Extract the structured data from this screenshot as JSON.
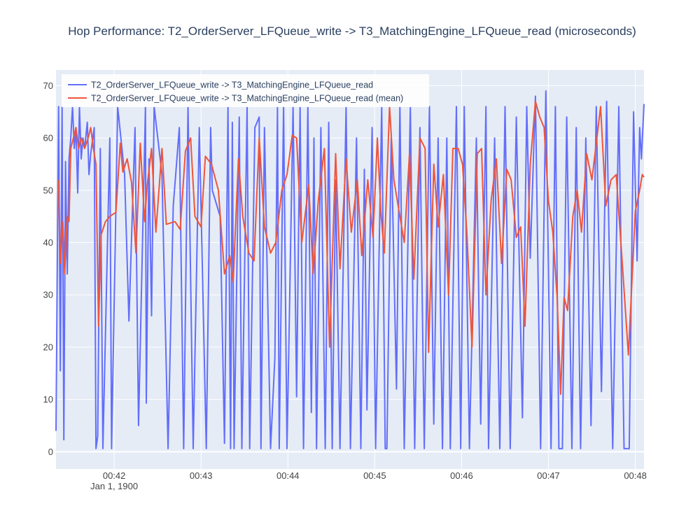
{
  "chart_data": {
    "type": "line",
    "title": "Hop Performance: T2_OrderServer_LFQueue_write -> T3_MatchingEngine_LFQueue_read (microseconds)",
    "xlabel": "",
    "ylabel": "",
    "x_ticks": [
      "00:42",
      "00:43",
      "00:44",
      "00:45",
      "00:46",
      "00:47",
      "00:48"
    ],
    "x_tick_minutes": [
      42,
      43,
      44,
      45,
      46,
      47,
      48
    ],
    "x_sublabel": "Jan 1, 1900",
    "xlim_minutes": [
      41.33,
      48.1
    ],
    "ylim": [
      -3.3,
      73
    ],
    "y_ticks": [
      0,
      10,
      20,
      30,
      40,
      50,
      60,
      70
    ],
    "grid": true,
    "legend_position": "top-left",
    "series": [
      {
        "name": "T2_OrderServer_LFQueue_write -> T3_MatchingEngine_LFQueue_read",
        "color": "#636efa",
        "points": [
          [
            41.33,
            4
          ],
          [
            41.36,
            66
          ],
          [
            41.38,
            15.5
          ],
          [
            41.4,
            66
          ],
          [
            41.42,
            2.3
          ],
          [
            41.44,
            55.5
          ],
          [
            41.46,
            34
          ],
          [
            41.48,
            56
          ],
          [
            41.5,
            60
          ],
          [
            41.52,
            66
          ],
          [
            41.54,
            58
          ],
          [
            41.56,
            62
          ],
          [
            41.58,
            49.5
          ],
          [
            41.6,
            66
          ],
          [
            41.62,
            56
          ],
          [
            41.64,
            60
          ],
          [
            41.66,
            58
          ],
          [
            41.69,
            63
          ],
          [
            41.71,
            53
          ],
          [
            41.73,
            57
          ],
          [
            41.77,
            62
          ],
          [
            41.79,
            0.6
          ],
          [
            41.81,
            3
          ],
          [
            41.84,
            58
          ],
          [
            41.87,
            0.6
          ],
          [
            41.95,
            60
          ],
          [
            41.97,
            0.6
          ],
          [
            42.04,
            66
          ],
          [
            42.12,
            53
          ],
          [
            42.17,
            25
          ],
          [
            42.24,
            62
          ],
          [
            42.28,
            5
          ],
          [
            42.36,
            66
          ],
          [
            42.37,
            9.3
          ],
          [
            42.4,
            56
          ],
          [
            42.43,
            26
          ],
          [
            42.46,
            66
          ],
          [
            42.55,
            53
          ],
          [
            42.62,
            0.6
          ],
          [
            42.68,
            47
          ],
          [
            42.75,
            62
          ],
          [
            42.8,
            0.6
          ],
          [
            42.85,
            66
          ],
          [
            42.91,
            0.6
          ],
          [
            42.98,
            62
          ],
          [
            43.06,
            0.6
          ],
          [
            43.11,
            62
          ],
          [
            43.13,
            50
          ],
          [
            43.22,
            45
          ],
          [
            43.27,
            1.6
          ],
          [
            43.31,
            66
          ],
          [
            43.34,
            0.6
          ],
          [
            43.36,
            63
          ],
          [
            43.38,
            0.6
          ],
          [
            43.44,
            64
          ],
          [
            43.47,
            0.6
          ],
          [
            43.53,
            66
          ],
          [
            43.56,
            0.6
          ],
          [
            43.62,
            62
          ],
          [
            43.67,
            64
          ],
          [
            43.69,
            0.6
          ],
          [
            43.73,
            62
          ],
          [
            43.8,
            0.6
          ],
          [
            43.85,
            18
          ],
          [
            43.88,
            66
          ],
          [
            43.9,
            0.6
          ],
          [
            43.95,
            66
          ],
          [
            43.99,
            0.6
          ],
          [
            44.06,
            66
          ],
          [
            44.1,
            10.5
          ],
          [
            44.14,
            66
          ],
          [
            44.18,
            0.6
          ],
          [
            44.23,
            66
          ],
          [
            44.27,
            7.5
          ],
          [
            44.3,
            60
          ],
          [
            44.33,
            0.6
          ],
          [
            44.38,
            62
          ],
          [
            44.43,
            0.6
          ],
          [
            44.47,
            63
          ],
          [
            44.51,
            0.6
          ],
          [
            44.55,
            52
          ],
          [
            44.6,
            0.6
          ],
          [
            44.67,
            66
          ],
          [
            44.72,
            0.6
          ],
          [
            44.79,
            60
          ],
          [
            44.84,
            0.6
          ],
          [
            44.88,
            54
          ],
          [
            44.91,
            8
          ],
          [
            44.97,
            62
          ],
          [
            45.01,
            0.6
          ],
          [
            45.08,
            66
          ],
          [
            45.12,
            0.6
          ],
          [
            45.14,
            0.6
          ],
          [
            45.19,
            60
          ],
          [
            45.25,
            12
          ],
          [
            45.29,
            66
          ],
          [
            45.34,
            0.6
          ],
          [
            45.41,
            66
          ],
          [
            45.46,
            0.6
          ],
          [
            45.52,
            62
          ],
          [
            45.57,
            0.6
          ],
          [
            45.63,
            66
          ],
          [
            45.68,
            5.3
          ],
          [
            45.73,
            60
          ],
          [
            45.78,
            0.6
          ],
          [
            45.83,
            60
          ],
          [
            45.87,
            0.6
          ],
          [
            45.94,
            66
          ],
          [
            45.99,
            0.6
          ],
          [
            46.03,
            66
          ],
          [
            46.09,
            0.6
          ],
          [
            46.17,
            60
          ],
          [
            46.22,
            5.3
          ],
          [
            46.28,
            66
          ],
          [
            46.31,
            0.6
          ],
          [
            46.38,
            60
          ],
          [
            46.44,
            0.6
          ],
          [
            46.5,
            66
          ],
          [
            46.56,
            0.6
          ],
          [
            46.63,
            64
          ],
          [
            46.7,
            6.5
          ],
          [
            46.75,
            66
          ],
          [
            46.79,
            37
          ],
          [
            46.85,
            68
          ],
          [
            46.91,
            0.6
          ],
          [
            46.97,
            69
          ],
          [
            47.03,
            0.6
          ],
          [
            47.08,
            66
          ],
          [
            47.12,
            0.6
          ],
          [
            47.16,
            0.6
          ],
          [
            47.21,
            64
          ],
          [
            47.27,
            0.6
          ],
          [
            47.32,
            62
          ],
          [
            47.37,
            0.6
          ],
          [
            47.43,
            60
          ],
          [
            47.49,
            5
          ],
          [
            47.55,
            66
          ],
          [
            47.61,
            11.5
          ],
          [
            47.67,
            67
          ],
          [
            47.74,
            0.6
          ],
          [
            47.81,
            66
          ],
          [
            47.87,
            0.6
          ],
          [
            47.93,
            0.6
          ],
          [
            47.98,
            65
          ],
          [
            48.02,
            36.5
          ],
          [
            48.05,
            62
          ],
          [
            48.07,
            56
          ],
          [
            48.1,
            66.5
          ]
        ]
      },
      {
        "name": "T2_OrderServer_LFQueue_write -> T3_MatchingEngine_LFQueue_read (mean)",
        "color": "#ef553b",
        "points": [
          [
            41.36,
            52
          ],
          [
            41.38,
            36
          ],
          [
            41.41,
            44
          ],
          [
            41.43,
            34
          ],
          [
            41.46,
            45
          ],
          [
            41.48,
            44
          ],
          [
            41.5,
            58
          ],
          [
            41.53,
            60
          ],
          [
            41.56,
            62
          ],
          [
            41.59,
            58
          ],
          [
            41.62,
            60
          ],
          [
            41.66,
            58
          ],
          [
            41.7,
            60
          ],
          [
            41.73,
            62
          ],
          [
            41.76,
            58
          ],
          [
            41.79,
            55
          ],
          [
            41.82,
            24
          ],
          [
            41.85,
            41.5
          ],
          [
            41.9,
            44
          ],
          [
            41.95,
            45
          ],
          [
            42.02,
            45.8
          ],
          [
            42.07,
            59
          ],
          [
            42.1,
            53.5
          ],
          [
            42.15,
            56
          ],
          [
            42.2,
            51.5
          ],
          [
            42.25,
            38
          ],
          [
            42.3,
            59
          ],
          [
            42.35,
            44
          ],
          [
            42.38,
            51
          ],
          [
            42.43,
            58
          ],
          [
            42.48,
            42
          ],
          [
            42.55,
            58
          ],
          [
            42.6,
            43.5
          ],
          [
            42.7,
            44
          ],
          [
            42.76,
            42.5
          ],
          [
            42.82,
            57.5
          ],
          [
            42.88,
            60
          ],
          [
            42.93,
            45
          ],
          [
            43.0,
            43
          ],
          [
            43.05,
            56.5
          ],
          [
            43.12,
            55
          ],
          [
            43.2,
            50
          ],
          [
            43.27,
            34
          ],
          [
            43.33,
            37.5
          ],
          [
            43.37,
            32.5
          ],
          [
            43.43,
            56
          ],
          [
            43.48,
            45
          ],
          [
            43.55,
            38
          ],
          [
            43.61,
            36.5
          ],
          [
            43.67,
            60
          ],
          [
            43.73,
            43
          ],
          [
            43.8,
            38
          ],
          [
            43.86,
            40
          ],
          [
            43.93,
            50
          ],
          [
            43.99,
            53
          ],
          [
            44.05,
            60.5
          ],
          [
            44.1,
            60
          ],
          [
            44.16,
            40
          ],
          [
            44.24,
            51
          ],
          [
            44.29,
            34
          ],
          [
            44.35,
            48
          ],
          [
            44.42,
            58
          ],
          [
            44.48,
            20
          ],
          [
            44.55,
            57
          ],
          [
            44.6,
            35
          ],
          [
            44.67,
            56
          ],
          [
            44.73,
            42
          ],
          [
            44.8,
            52
          ],
          [
            44.85,
            37.5
          ],
          [
            44.92,
            52
          ],
          [
            44.98,
            41
          ],
          [
            45.03,
            60
          ],
          [
            45.07,
            46
          ],
          [
            45.11,
            38
          ],
          [
            45.17,
            66
          ],
          [
            45.22,
            52
          ],
          [
            45.28,
            46
          ],
          [
            45.34,
            40
          ],
          [
            45.4,
            57
          ],
          [
            45.45,
            33
          ],
          [
            45.52,
            60
          ],
          [
            45.58,
            58
          ],
          [
            45.62,
            19
          ],
          [
            45.68,
            55
          ],
          [
            45.73,
            43
          ],
          [
            45.79,
            53
          ],
          [
            45.85,
            30
          ],
          [
            45.9,
            58
          ],
          [
            45.96,
            58
          ],
          [
            46.01,
            55
          ],
          [
            46.06,
            42
          ],
          [
            46.12,
            20
          ],
          [
            46.18,
            57
          ],
          [
            46.23,
            58
          ],
          [
            46.28,
            30
          ],
          [
            46.34,
            48
          ],
          [
            46.4,
            56
          ],
          [
            46.46,
            36
          ],
          [
            46.52,
            54
          ],
          [
            46.57,
            52
          ],
          [
            46.63,
            41
          ],
          [
            46.68,
            43
          ],
          [
            46.73,
            24
          ],
          [
            46.79,
            55
          ],
          [
            46.85,
            67
          ],
          [
            46.9,
            64
          ],
          [
            46.95,
            62
          ],
          [
            47.0,
            48
          ],
          [
            47.05,
            42
          ],
          [
            47.1,
            29.5
          ],
          [
            47.14,
            11
          ],
          [
            47.18,
            29.5
          ],
          [
            47.22,
            27
          ],
          [
            47.28,
            45
          ],
          [
            47.33,
            50
          ],
          [
            47.38,
            42
          ],
          [
            47.44,
            57
          ],
          [
            47.5,
            52
          ],
          [
            47.55,
            59
          ],
          [
            47.6,
            66
          ],
          [
            47.66,
            47
          ],
          [
            47.72,
            52
          ],
          [
            47.78,
            53
          ],
          [
            47.85,
            36
          ],
          [
            47.92,
            18.5
          ],
          [
            48.0,
            46
          ],
          [
            48.05,
            50
          ],
          [
            48.08,
            53
          ],
          [
            48.1,
            52.5
          ]
        ]
      }
    ]
  }
}
